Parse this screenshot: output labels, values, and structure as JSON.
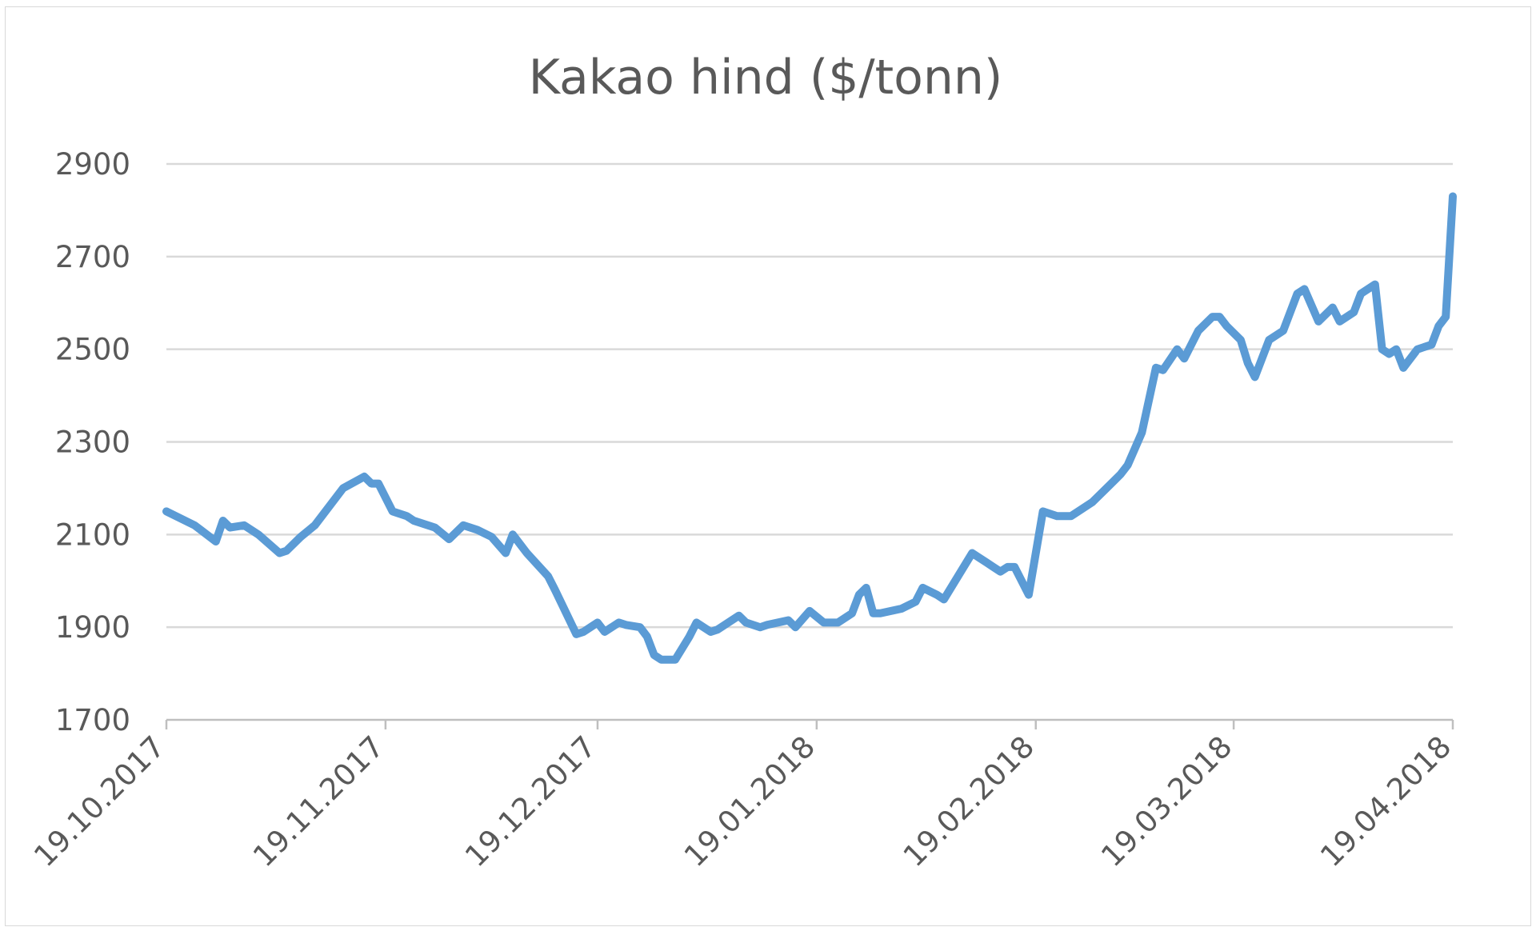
{
  "chart_data": {
    "type": "line",
    "title": "Kakao hind ($/tonn)",
    "xlabel": "",
    "ylabel": "",
    "ylim": [
      1700,
      2900
    ],
    "y_ticks": [
      "1700",
      "1900",
      "2100",
      "2300",
      "2500",
      "2700",
      "2900"
    ],
    "x_ticks": [
      "19.10.2017",
      "19.11.2017",
      "19.12.2017",
      "19.01.2018",
      "19.02.2018",
      "19.03.2018",
      "19.04.2018"
    ],
    "x_range": [
      "19.10.2017",
      "19.04.2018"
    ],
    "grid": "horizontal",
    "legend": "none",
    "colors": {
      "line": "#5b9bd5",
      "grid": "#d9d9d9",
      "axis": "#bfbfbf",
      "text": "#595959"
    },
    "series": [
      {
        "color": "#5b9bd5",
        "x": [
          "19.10.2017",
          "23.10.2017",
          "26.10.2017",
          "27.10.2017",
          "28.10.2017",
          "30.10.2017",
          "01.11.2017",
          "04.11.2017",
          "05.11.2017",
          "06.11.2017",
          "07.11.2017",
          "09.11.2017",
          "13.11.2017",
          "16.11.2017",
          "17.11.2017",
          "18.11.2017",
          "20.11.2017",
          "22.11.2017",
          "23.11.2017",
          "26.11.2017",
          "28.11.2017",
          "30.11.2017",
          "02.12.2017",
          "04.12.2017",
          "06.12.2017",
          "07.12.2017",
          "09.12.2017",
          "12.12.2017",
          "13.12.2017",
          "16.12.2017",
          "17.12.2017",
          "18.12.2017",
          "19.12.2017",
          "20.12.2017",
          "22.12.2017",
          "23.12.2017",
          "25.12.2017",
          "26.12.2017",
          "27.12.2017",
          "28.12.2017",
          "29.12.2017",
          "30.12.2017",
          "01.01.2018",
          "02.01.2018",
          "04.01.2018",
          "05.01.2018",
          "08.01.2018",
          "09.01.2018",
          "11.01.2018",
          "12.01.2018",
          "15.01.2018",
          "16.01.2018",
          "18.01.2018",
          "20.01.2018",
          "22.01.2018",
          "24.01.2018",
          "25.01.2018",
          "26.01.2018",
          "27.01.2018",
          "28.01.2018",
          "31.01.2018",
          "02.02.2018",
          "03.02.2018",
          "05.02.2018",
          "06.02.2018",
          "08.02.2018",
          "10.02.2018",
          "11.02.2018",
          "12.02.2018",
          "13.02.2018",
          "14.02.2018",
          "15.02.2018",
          "16.02.2018",
          "18.02.2018",
          "20.02.2018",
          "22.02.2018",
          "24.02.2018",
          "25.02.2018",
          "27.02.2018",
          "01.03.2018",
          "03.03.2018",
          "04.03.2018",
          "06.03.2018",
          "08.03.2018",
          "09.03.2018",
          "11.03.2018",
          "12.03.2018",
          "14.03.2018",
          "16.03.2018",
          "17.03.2018",
          "18.03.2018",
          "20.03.2018",
          "21.03.2018",
          "22.03.2018",
          "24.03.2018",
          "26.03.2018",
          "28.03.2018",
          "29.03.2018",
          "31.03.2018",
          "02.04.2018",
          "03.04.2018",
          "05.04.2018",
          "06.04.2018",
          "08.04.2018",
          "09.04.2018",
          "10.04.2018",
          "11.04.2018",
          "12.04.2018",
          "14.04.2018",
          "16.04.2018",
          "17.04.2018",
          "18.04.2018",
          "19.04.2018"
        ],
        "values": [
          2150,
          2120,
          2085,
          2130,
          2115,
          2120,
          2100,
          2060,
          2065,
          2080,
          2095,
          2120,
          2200,
          2225,
          2210,
          2210,
          2150,
          2140,
          2130,
          2115,
          2090,
          2120,
          2110,
          2095,
          2060,
          2100,
          2060,
          2010,
          1980,
          1885,
          1890,
          1900,
          1910,
          1890,
          1910,
          1905,
          1900,
          1880,
          1840,
          1830,
          1830,
          1830,
          1880,
          1910,
          1890,
          1895,
          1925,
          1910,
          1900,
          1905,
          1915,
          1900,
          1935,
          1910,
          1910,
          1930,
          1970,
          1985,
          1930,
          1930,
          1940,
          1955,
          1985,
          1970,
          1960,
          2010,
          2060,
          2050,
          2040,
          2030,
          2020,
          2030,
          2030,
          1970,
          2150,
          2140,
          2140,
          2150,
          2170,
          2200,
          2230,
          2250,
          2320,
          2460,
          2455,
          2500,
          2480,
          2540,
          2570,
          2570,
          2550,
          2520,
          2470,
          2440,
          2520,
          2540,
          2620,
          2630,
          2560,
          2590,
          2560,
          2580,
          2620,
          2640,
          2500,
          2490,
          2500,
          2460,
          2500,
          2510,
          2550,
          2570,
          2830
        ]
      }
    ]
  }
}
